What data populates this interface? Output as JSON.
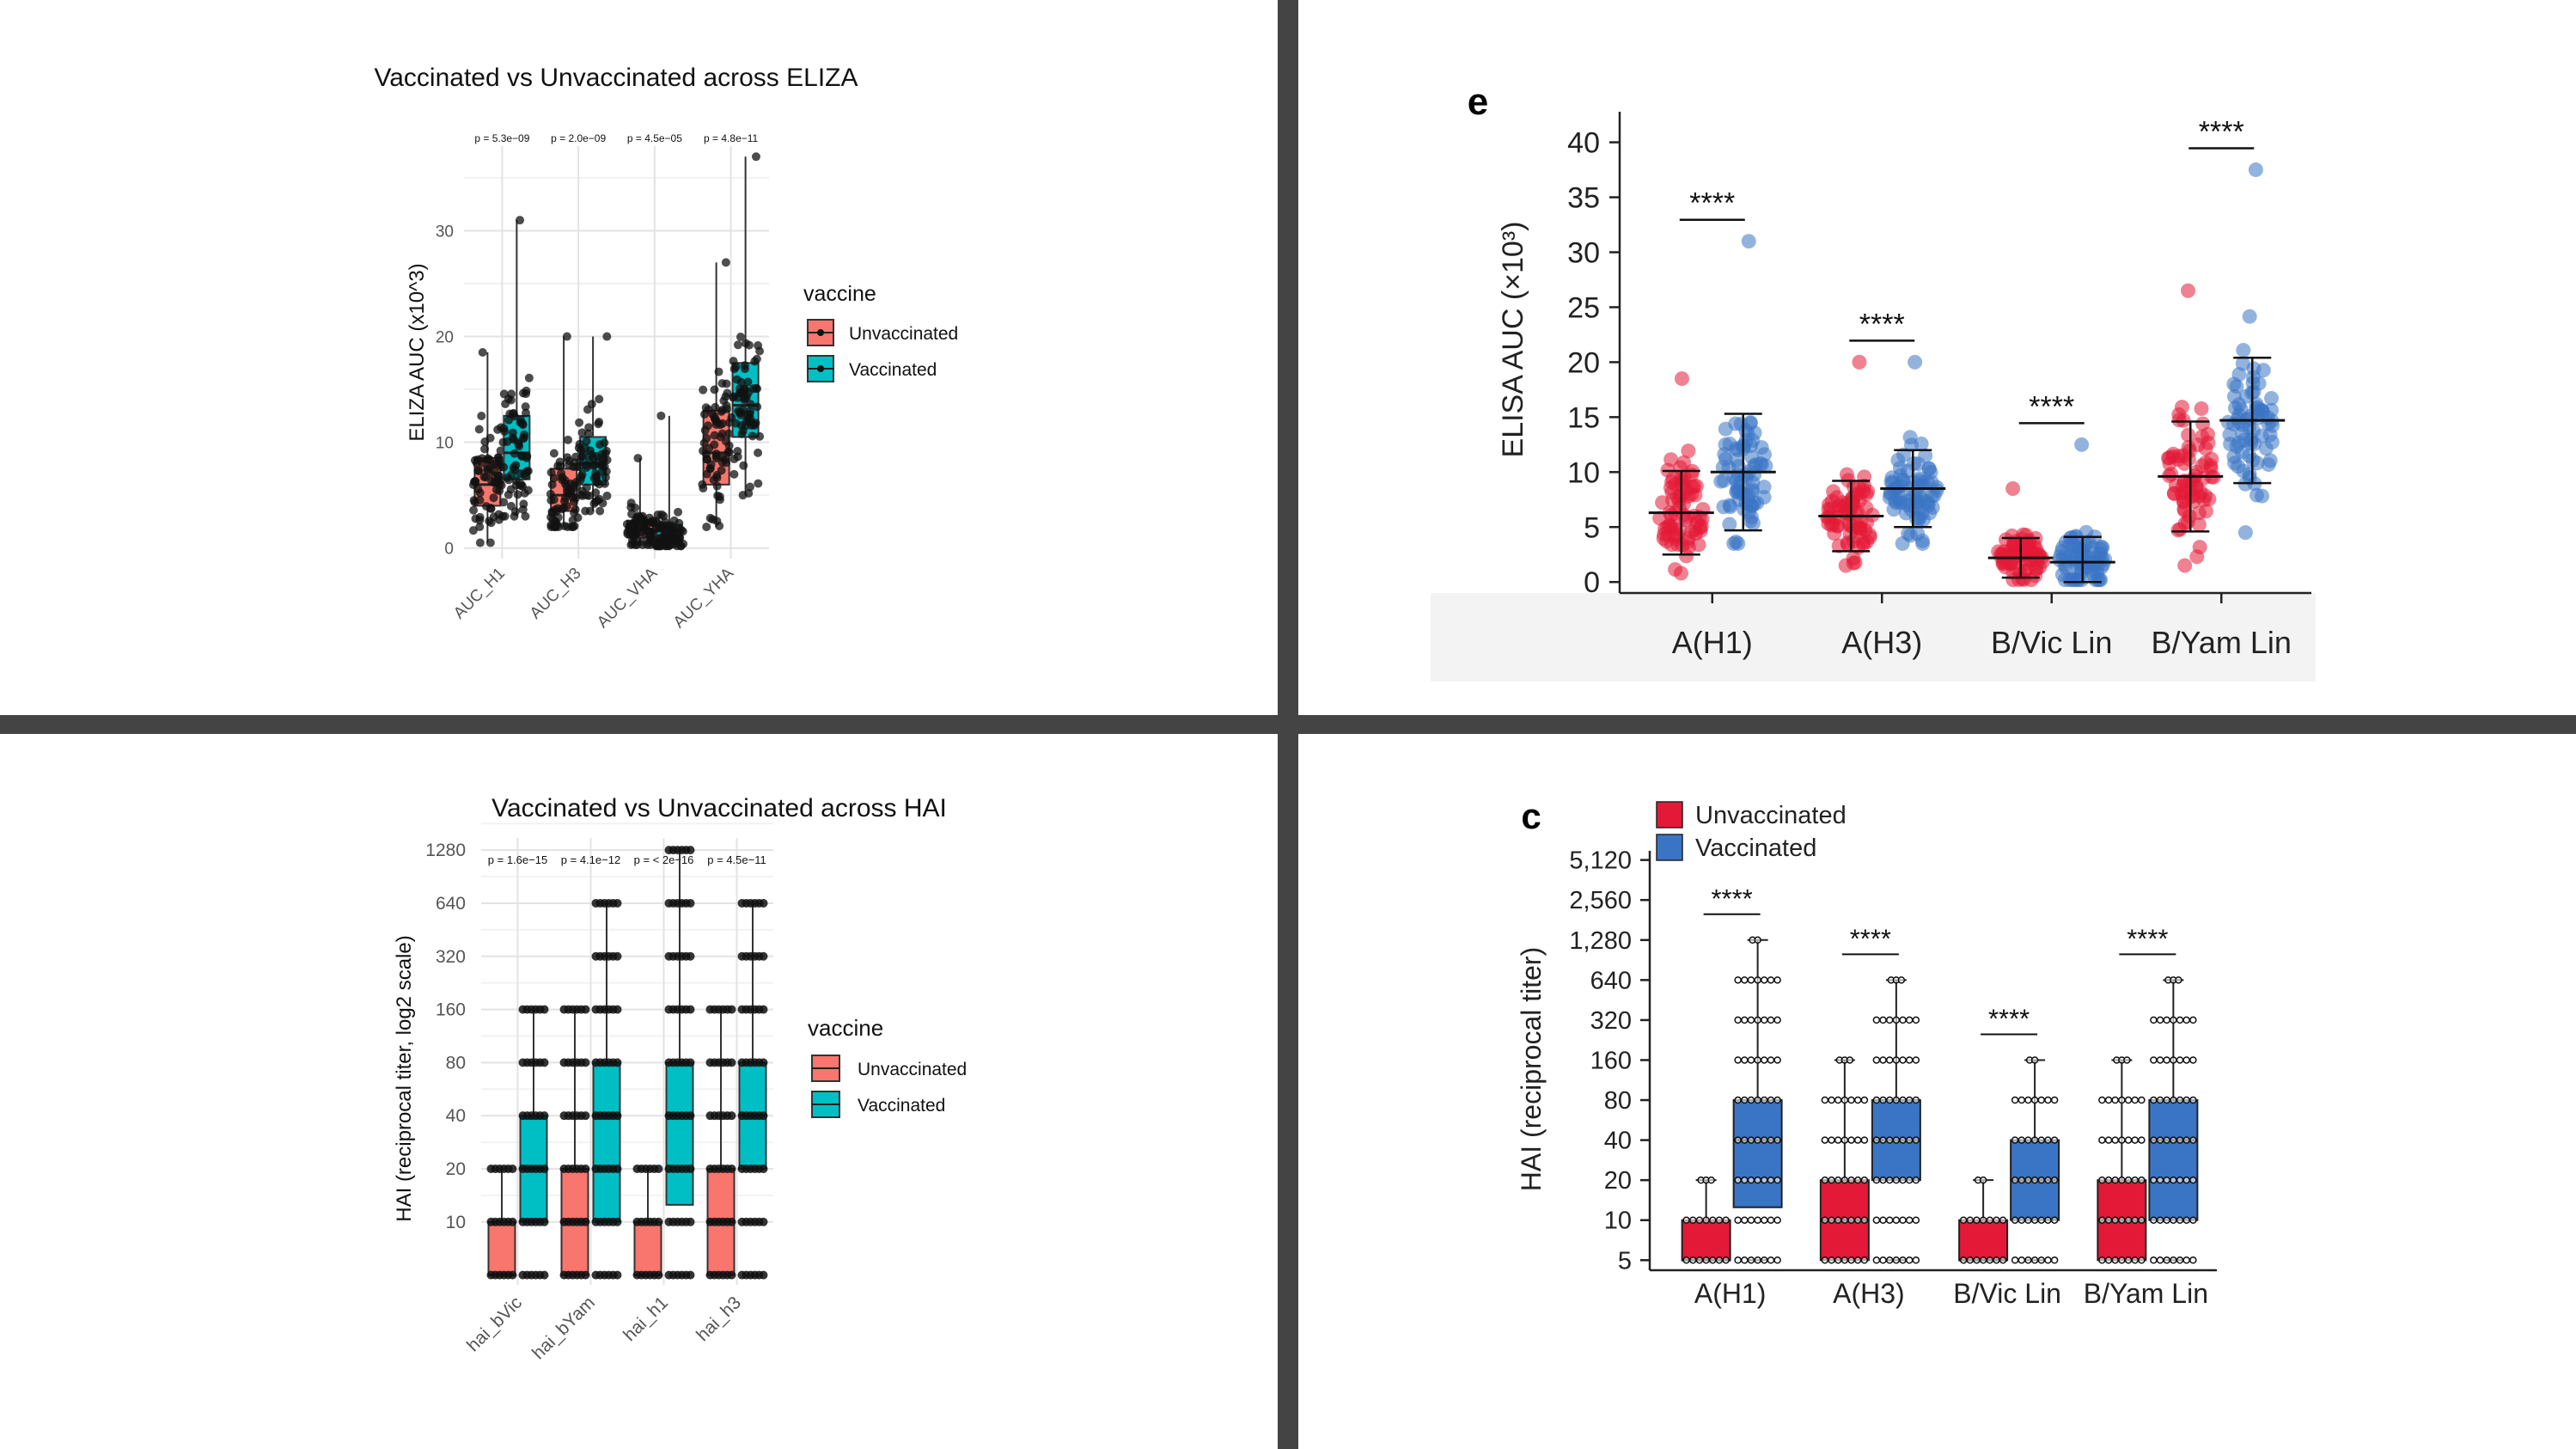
{
  "colors": {
    "r_red": "#F8766D",
    "r_teal": "#00BFC4",
    "n_red": "#E31937",
    "n_blue": "#3A74C4",
    "divider": "#444444"
  },
  "chart_data": [
    {
      "panel": "top-left",
      "type": "boxplot",
      "title": "Vaccinated vs Unvaccinated across ELIZA",
      "ylabel": "ELIZA AUC (x10^3)",
      "xlabel": "",
      "ylim": [
        -1,
        38
      ],
      "yticks": [
        "0",
        "10",
        "20",
        "30"
      ],
      "categories": [
        "AUC_H1",
        "AUC_H3",
        "AUC_VHA",
        "AUC_YHA"
      ],
      "pvalues": [
        "p = 5.3e−09",
        "p = 2.0e−09",
        "p = 4.5e−05",
        "p = 4.8e−11"
      ],
      "legend": {
        "title": "vaccine",
        "items": [
          "Unvaccinated",
          "Vaccinated"
        ]
      },
      "series": [
        {
          "name": "Unvaccinated",
          "boxes": [
            {
              "min": 0.5,
              "q1": 4,
              "median": 6,
              "q3": 8.5,
              "max": 18.5
            },
            {
              "min": 2,
              "q1": 3.5,
              "median": 5,
              "q3": 7.5,
              "max": 20
            },
            {
              "min": 0.3,
              "q1": 1,
              "median": 1.8,
              "q3": 2.6,
              "max": 8.5
            },
            {
              "min": 2,
              "q1": 6,
              "median": 9,
              "q3": 13,
              "max": 27
            }
          ]
        },
        {
          "name": "Vaccinated",
          "boxes": [
            {
              "min": 3,
              "q1": 6.5,
              "median": 9,
              "q3": 12.5,
              "max": 31
            },
            {
              "min": 3.5,
              "q1": 6,
              "median": 8,
              "q3": 10.5,
              "max": 20
            },
            {
              "min": 0.2,
              "q1": 0.6,
              "median": 1.2,
              "q3": 2.2,
              "max": 12.5
            },
            {
              "min": 5,
              "q1": 10.5,
              "median": 13.5,
              "q3": 17.5,
              "max": 37
            }
          ]
        }
      ]
    },
    {
      "panel": "top-right",
      "type": "scatter-dot",
      "tag": "e",
      "ylabel": "ELISA AUC (×10³)",
      "ylim": [
        -1,
        42
      ],
      "yticks": [
        "0",
        "5",
        "10",
        "15",
        "20",
        "25",
        "30",
        "35",
        "40"
      ],
      "categories": [
        "A(H1)",
        "A(H3)",
        "B/Vic Lin",
        "B/Yam Lin"
      ],
      "significance": [
        "****",
        "****",
        "****",
        "****"
      ],
      "series": [
        {
          "name": "Unvaccinated",
          "mean": [
            6.3,
            6.0,
            2.2,
            9.6
          ],
          "sd": [
            3.8,
            3.2,
            1.8,
            5.0
          ],
          "max": [
            18.5,
            20,
            8.5,
            26.5
          ],
          "min": [
            0.8,
            1.5,
            0.2,
            1.5
          ]
        },
        {
          "name": "Vaccinated",
          "mean": [
            10.0,
            8.5,
            1.8,
            14.7
          ],
          "sd": [
            5.3,
            3.5,
            2.3,
            5.7
          ],
          "max": [
            31,
            20,
            12.5,
            37.5
          ],
          "min": [
            3.5,
            3.5,
            0.2,
            4.5
          ]
        }
      ]
    },
    {
      "panel": "bottom-left",
      "type": "boxplot",
      "title": "Vaccinated vs Unvaccinated across HAI",
      "ylabel": "HAI (reciprocal titer, log2 scale)",
      "yscale": "log2",
      "yticks": [
        "10",
        "20",
        "40",
        "80",
        "160",
        "320",
        "640",
        "1280"
      ],
      "categories": [
        "hai_bVic",
        "hai_bYam",
        "hai_h1",
        "hai_h3"
      ],
      "pvalues": [
        "p = 1.6e−15",
        "p = 4.1e−12",
        "p = < 2e−16",
        "p = 4.5e−11"
      ],
      "legend": {
        "title": "vaccine",
        "items": [
          "Unvaccinated",
          "Vaccinated"
        ]
      },
      "series": [
        {
          "name": "Unvaccinated",
          "boxes": [
            {
              "min": 5,
              "q1": 5,
              "median": 5,
              "q3": 10,
              "max": 20
            },
            {
              "min": 5,
              "q1": 5,
              "median": 10,
              "q3": 20,
              "max": 160
            },
            {
              "min": 5,
              "q1": 5,
              "median": 5,
              "q3": 10,
              "max": 20
            },
            {
              "min": 5,
              "q1": 5,
              "median": 10,
              "q3": 20,
              "max": 160
            }
          ]
        },
        {
          "name": "Vaccinated",
          "boxes": [
            {
              "min": 5,
              "q1": 10,
              "median": 20,
              "q3": 40,
              "max": 160
            },
            {
              "min": 5,
              "q1": 10,
              "median": 40,
              "q3": 80,
              "max": 640
            },
            {
              "min": 5,
              "q1": 12.5,
              "median": 40,
              "q3": 80,
              "max": 1280
            },
            {
              "min": 5,
              "q1": 20,
              "median": 40,
              "q3": 80,
              "max": 640
            }
          ]
        }
      ]
    },
    {
      "panel": "bottom-right",
      "type": "boxplot",
      "tag": "c",
      "ylabel": "HAI (reciprocal titer)",
      "yscale": "log2",
      "yticks": [
        "5",
        "10",
        "20",
        "40",
        "80",
        "160",
        "320",
        "640",
        "1,280",
        "2,560",
        "5,120"
      ],
      "categories": [
        "A(H1)",
        "A(H3)",
        "B/Vic Lin",
        "B/Yam Lin"
      ],
      "significance": [
        "****",
        "****",
        "****",
        "****"
      ],
      "legend": {
        "items": [
          "Unvaccinated",
          "Vaccinated"
        ]
      },
      "series": [
        {
          "name": "Unvaccinated",
          "boxes": [
            {
              "min": 5,
              "q1": 5,
              "median": 5,
              "q3": 10,
              "max": 20
            },
            {
              "min": 5,
              "q1": 5,
              "median": 10,
              "q3": 20,
              "max": 160
            },
            {
              "min": 5,
              "q1": 5,
              "median": 5,
              "q3": 10,
              "max": 20
            },
            {
              "min": 5,
              "q1": 5,
              "median": 10,
              "q3": 20,
              "max": 160
            }
          ]
        },
        {
          "name": "Vaccinated",
          "boxes": [
            {
              "min": 5,
              "q1": 12.5,
              "median": 40,
              "q3": 80,
              "max": 1280
            },
            {
              "min": 5,
              "q1": 20,
              "median": 40,
              "q3": 80,
              "max": 640
            },
            {
              "min": 5,
              "q1": 10,
              "median": 20,
              "q3": 40,
              "max": 160
            },
            {
              "min": 5,
              "q1": 10,
              "median": 40,
              "q3": 80,
              "max": 640
            }
          ]
        }
      ]
    }
  ]
}
